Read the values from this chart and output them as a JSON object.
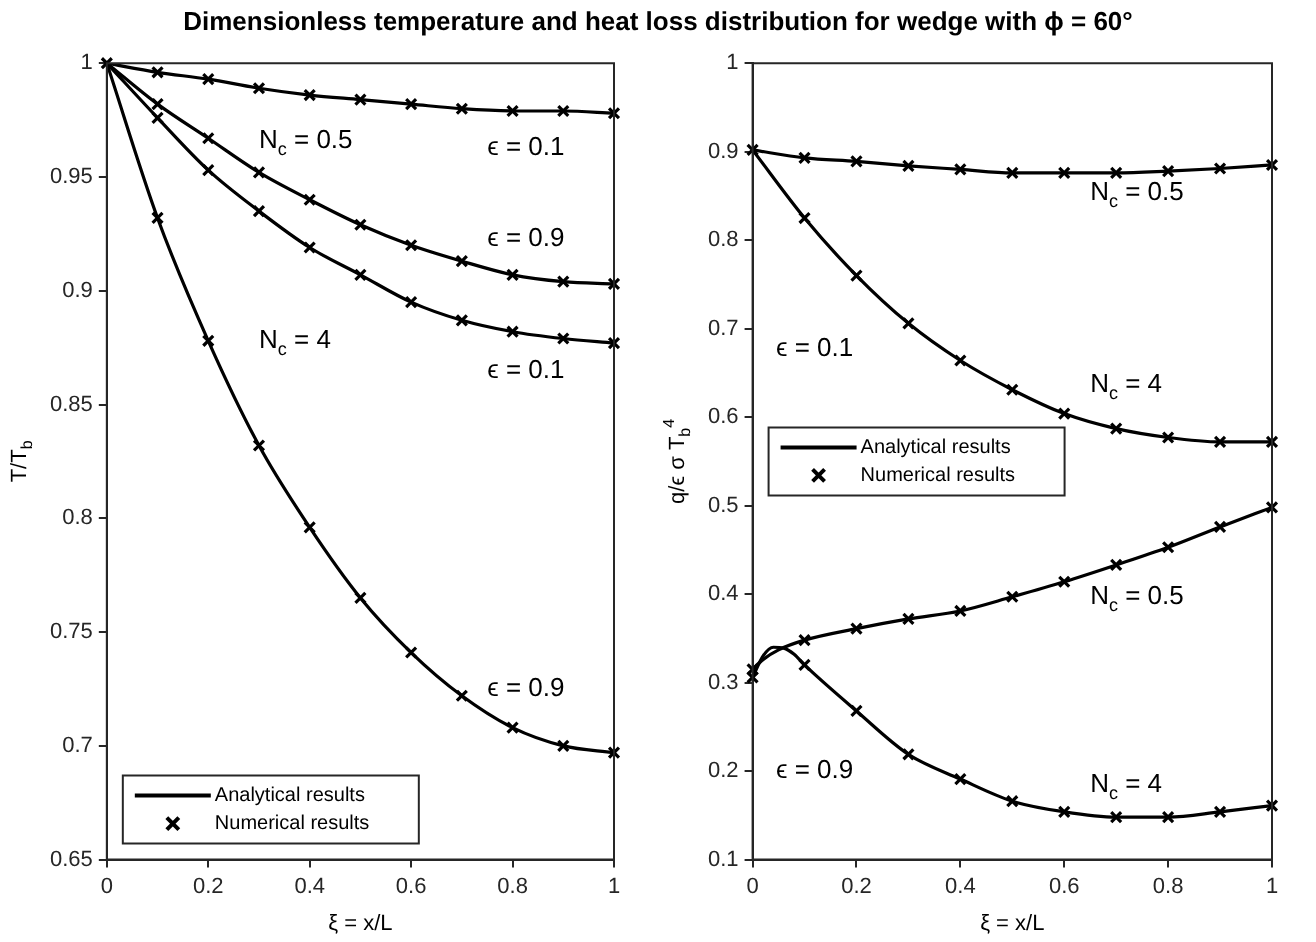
{
  "chart_data": [
    {
      "type": "line",
      "title": "Dimensionless temperature and heat loss distribution for wedge with ϕ = 60°",
      "xlabel": "ξ = x/L",
      "ylabel": "T/T$_{b}$",
      "x": [
        0,
        0.1,
        0.2,
        0.3,
        0.4,
        0.5,
        0.6,
        0.7,
        0.8,
        0.9,
        1
      ],
      "xlim": [
        0,
        1
      ],
      "xticks": [
        0,
        0.2,
        0.4,
        0.6,
        0.8,
        1
      ],
      "ylim": [
        0.65,
        1
      ],
      "yticks": [
        0.65,
        0.7,
        0.75,
        0.8,
        0.85,
        0.9,
        0.95,
        1
      ],
      "grid": false,
      "legend": "bottom left",
      "series": [
        {
          "name": "Analytical results",
          "marker": "none",
          "color": "#000000",
          "values": [
            1,
            0.996,
            0.993,
            0.989,
            0.986,
            0.984,
            0.982,
            0.98,
            0.979,
            0.979,
            0.978
          ]
        },
        {
          "marker": "none",
          "color": "#000000",
          "values": [
            1,
            0.982,
            0.967,
            0.952,
            0.94,
            0.929,
            0.92,
            0.913,
            0.907,
            0.904,
            0.903
          ]
        },
        {
          "marker": "none",
          "color": "#000000",
          "values": [
            1,
            0.976,
            0.953,
            0.935,
            0.919,
            0.907,
            0.895,
            0.887,
            0.882,
            0.879,
            0.877
          ]
        },
        {
          "marker": "none",
          "color": "#000000",
          "values": [
            1,
            0.932,
            0.878,
            0.832,
            0.796,
            0.765,
            0.741,
            0.722,
            0.708,
            0.7,
            0.697
          ]
        },
        {
          "type": "scatter",
          "name": "Numerical results",
          "marker": "cross",
          "color": "#000000",
          "values": [
            1,
            0.996,
            0.993,
            0.989,
            0.986,
            0.984,
            0.982,
            0.98,
            0.979,
            0.979,
            0.978
          ]
        },
        {
          "type": "scatter",
          "marker": "cross",
          "color": "#000000",
          "values": [
            null,
            0.982,
            0.967,
            0.952,
            0.94,
            0.929,
            0.92,
            0.913,
            0.907,
            0.904,
            0.903
          ]
        },
        {
          "type": "scatter",
          "marker": "cross",
          "color": "#000000",
          "values": [
            null,
            0.976,
            0.953,
            0.935,
            0.919,
            0.907,
            0.895,
            0.887,
            0.882,
            0.879,
            0.877
          ]
        },
        {
          "type": "scatter",
          "marker": "cross",
          "color": "#000000",
          "values": [
            null,
            0.932,
            0.878,
            0.832,
            0.796,
            0.765,
            0.741,
            0.722,
            0.708,
            0.7,
            0.697
          ]
        }
      ],
      "annotations": [
        "N$_{c}$ = 0.5",
        "ϵ = 0.1",
        "ϵ = 0.9",
        "N$_{c}$ = 4",
        "ϵ = 0.1",
        "ϵ = 0.9"
      ]
    },
    {
      "type": "line",
      "xlabel": "ξ = x/L",
      "ylabel": "q/ϵ σ T$_{b}$$^{4}$",
      "x": [
        0,
        0.1,
        0.2,
        0.3,
        0.4,
        0.5,
        0.6,
        0.7,
        0.8,
        0.9,
        1
      ],
      "xlim": [
        0,
        1
      ],
      "xticks": [
        0,
        0.2,
        0.4,
        0.6,
        0.8,
        1
      ],
      "ylim": [
        0.1,
        1
      ],
      "yticks": [
        0.1,
        0.2,
        0.3,
        0.4,
        0.5,
        0.6,
        0.7,
        0.8,
        0.9,
        1
      ],
      "grid": false,
      "legend": "left",
      "series": [
        {
          "name": "Analytical results",
          "marker": "none",
          "color": "#000000",
          "values": [
            0.902,
            0.893,
            0.889,
            0.884,
            0.88,
            0.876,
            0.876,
            0.876,
            0.878,
            0.881,
            0.885
          ]
        },
        {
          "marker": "none",
          "color": "#000000",
          "values": [
            0.902,
            0.825,
            0.76,
            0.706,
            0.664,
            0.631,
            0.604,
            0.587,
            0.577,
            0.572,
            0.572
          ]
        },
        {
          "marker": "none",
          "color": "#000000",
          "x": [
            0,
            0.02,
            0.05,
            0.1,
            0.2,
            0.3,
            0.4,
            0.5,
            0.6,
            0.7,
            0.8,
            0.9,
            1
          ],
          "values": [
            0.315,
            0.326,
            0.337,
            0.348,
            0.361,
            0.372,
            0.381,
            0.397,
            0.414,
            0.433,
            0.453,
            0.476,
            0.498
          ]
        },
        {
          "marker": "none",
          "color": "#000000",
          "x": [
            0,
            0.02,
            0.04,
            0.06,
            0.08,
            0.1,
            0.2,
            0.3,
            0.4,
            0.5,
            0.6,
            0.7,
            0.8,
            0.9,
            1
          ],
          "values": [
            0.306,
            0.33,
            0.34,
            0.339,
            0.332,
            0.32,
            0.268,
            0.219,
            0.191,
            0.166,
            0.154,
            0.148,
            0.148,
            0.154,
            0.161
          ]
        },
        {
          "type": "scatter",
          "name": "Numerical results",
          "marker": "cross",
          "color": "#000000",
          "values": [
            0.902,
            0.893,
            0.889,
            0.884,
            0.88,
            0.876,
            0.876,
            0.876,
            0.878,
            0.881,
            0.885
          ]
        },
        {
          "type": "scatter",
          "marker": "cross",
          "color": "#000000",
          "values": [
            null,
            0.825,
            0.76,
            0.706,
            0.664,
            0.631,
            0.604,
            0.587,
            0.577,
            0.572,
            0.572
          ]
        },
        {
          "type": "scatter",
          "marker": "cross",
          "color": "#000000",
          "values": [
            0.315,
            0.348,
            0.361,
            0.372,
            0.381,
            0.397,
            0.414,
            0.433,
            0.453,
            0.476,
            0.498
          ]
        },
        {
          "type": "scatter",
          "marker": "cross",
          "color": "#000000",
          "values": [
            0.306,
            0.32,
            0.268,
            0.219,
            0.191,
            0.166,
            0.154,
            0.148,
            0.148,
            0.154,
            0.161
          ]
        }
      ],
      "annotations": [
        "N$_{c}$ = 0.5",
        "ϵ = 0.1",
        "N$_{c}$ = 4",
        "N$_{c}$ = 0.5",
        "ϵ = 0.9",
        "N$_{c}$ = 4"
      ]
    }
  ]
}
